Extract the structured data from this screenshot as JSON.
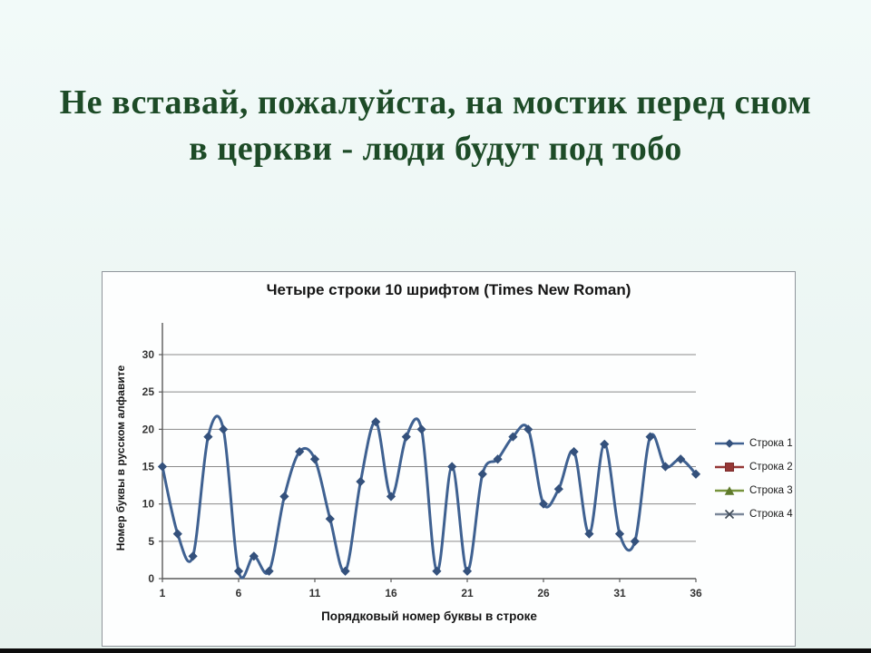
{
  "page": {
    "title_line1": "Не вставай, пожалуйста, на мостик перед сном",
    "title_line2": "в церкви - люди будут под тобо",
    "title_color": "#1d4b27",
    "background_color": "#ecf6f3"
  },
  "chart_data": {
    "type": "line",
    "title": "Четыре строки 10 шрифтом (Times New Roman)",
    "xlabel": "Порядковый номер буквы в строке",
    "ylabel": "Номер буквы в русском алфавите",
    "x_ticks": [
      1,
      6,
      11,
      16,
      21,
      26,
      31,
      36
    ],
    "y_ticks": [
      0,
      5,
      10,
      15,
      20,
      25,
      30
    ],
    "xlim": [
      1,
      36
    ],
    "ylim": [
      0,
      30
    ],
    "grid": "horizontal",
    "legend_position": "right",
    "x": [
      1,
      2,
      3,
      4,
      5,
      6,
      7,
      8,
      9,
      10,
      11,
      12,
      13,
      14,
      15,
      16,
      17,
      18,
      19,
      20,
      21,
      22,
      23,
      24,
      25,
      26,
      27,
      28,
      29,
      30,
      31,
      32,
      33,
      34,
      35,
      36
    ],
    "series": [
      {
        "name": "Строка 1",
        "marker": "diamond",
        "line_color": "#3f6191",
        "marker_color": "#34517c",
        "values": [
          15,
          6,
          3,
          19,
          20,
          1,
          3,
          1,
          11,
          17,
          16,
          8,
          1,
          13,
          21,
          11,
          19,
          20,
          1,
          15,
          1,
          14,
          16,
          19,
          20,
          10,
          12,
          17,
          6,
          18,
          6,
          5,
          19,
          15,
          16,
          14
        ]
      },
      {
        "name": "Строка 2",
        "marker": "square",
        "line_color": "#953735",
        "marker_color": "#7d2d2c",
        "values": []
      },
      {
        "name": "Строка 3",
        "marker": "triangle",
        "line_color": "#77933c",
        "marker_color": "#5f7a2b",
        "values": []
      },
      {
        "name": "Строка 4",
        "marker": "x",
        "line_color": "#7b8799",
        "marker_color": "#3f4a57",
        "values": []
      }
    ],
    "axis_color": "#5a5a5a",
    "grid_color": "#8a8a8a",
    "tick_label_color": "#333333"
  }
}
